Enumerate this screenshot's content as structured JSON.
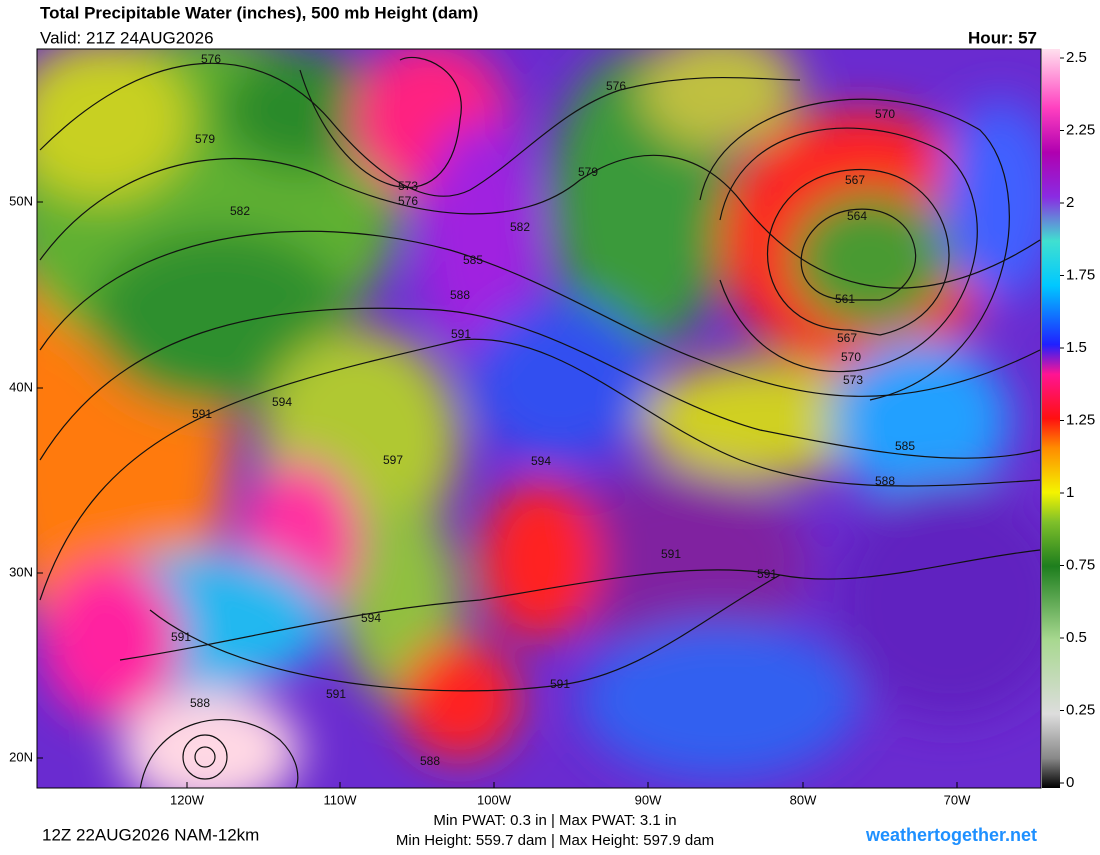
{
  "header": {
    "title": "Total Precipitable Water (inches), 500 mb Height (dam)",
    "valid": "Valid: 21Z 24AUG2026",
    "hour": "Hour: 57"
  },
  "colorbar": {
    "ticks": [
      0,
      0.25,
      0.5,
      0.75,
      1,
      1.25,
      1.5,
      1.75,
      2,
      2.25,
      2.5
    ]
  },
  "map": {
    "lat_labels": [
      "50N",
      "40N",
      "30N",
      "20N"
    ],
    "lon_labels": [
      "120W",
      "110W",
      "100W",
      "90W",
      "80W",
      "70W"
    ],
    "contour_labels": [
      576,
      576,
      570,
      579,
      573,
      576,
      579,
      567,
      564,
      582,
      582,
      585,
      588,
      561,
      567,
      591,
      570,
      573,
      591,
      594,
      597,
      594,
      585,
      588,
      591,
      591,
      594,
      591,
      591,
      591,
      588,
      588
    ]
  },
  "footer": {
    "run": "12Z 22AUG2026 NAM-12km",
    "pwat": "Min PWAT:   0.3 in | Max PWAT:   3.1 in",
    "height": "Min Height: 559.7 dam | Max Height: 597.9 dam",
    "site": "weathertogether.net"
  }
}
